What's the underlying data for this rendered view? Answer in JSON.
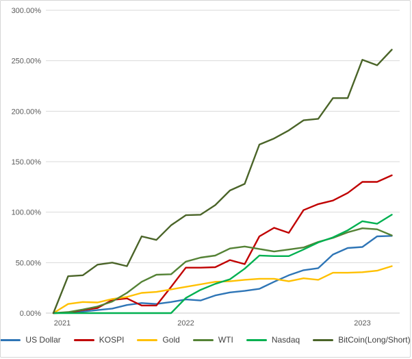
{
  "chart_data": {
    "type": "line",
    "title": "",
    "x_axis": {
      "point_count": 24,
      "tick_labels": [
        {
          "label": "2021",
          "index": 0,
          "dx": 13
        },
        {
          "label": "2022",
          "index": 9,
          "dx": 0
        },
        {
          "label": "2023",
          "index": 21,
          "dx": 0
        }
      ]
    },
    "y_axis": {
      "min": 0,
      "max": 300,
      "step": 50,
      "format": "percent",
      "tick_labels": [
        "0.00%",
        "50.00%",
        "100.00%",
        "150.00%",
        "200.00%",
        "250.00%",
        "300.00%"
      ]
    },
    "grid": "horizontal",
    "legend_position": "bottom",
    "series": [
      {
        "name": "US Dollar",
        "color": "#2E75B6",
        "values": [
          0,
          0.5,
          1.5,
          3,
          4.5,
          8,
          10,
          9,
          11,
          13.5,
          12.5,
          17.5,
          20.5,
          22,
          24,
          31,
          37.5,
          42.5,
          44.5,
          58,
          64.5,
          65.5,
          76,
          76.5
        ]
      },
      {
        "name": "KOSPI",
        "color": "#C00000",
        "values": [
          0,
          0.5,
          3,
          5,
          13,
          14.5,
          7.5,
          7.5,
          26,
          45,
          45,
          45.5,
          52.5,
          48.5,
          76,
          84.5,
          79.5,
          102,
          108,
          111.5,
          119,
          130,
          130,
          136.5
        ]
      },
      {
        "name": "Gold",
        "color": "#FFC000",
        "values": [
          0,
          9,
          11,
          10.5,
          14,
          16,
          20,
          21,
          23.5,
          26,
          28.5,
          31,
          31.5,
          33,
          34,
          34,
          31.5,
          34.5,
          33,
          40,
          40,
          40.5,
          42,
          46.5
        ]
      },
      {
        "name": "WTI",
        "color": "#548235",
        "values": [
          0,
          1,
          3.5,
          6.5,
          11.5,
          20,
          31,
          38,
          38.5,
          51,
          55,
          57,
          64,
          66,
          63.5,
          61,
          63,
          65,
          70.5,
          74.5,
          80,
          84,
          83,
          77
        ]
      },
      {
        "name": "Nasdaq",
        "color": "#00B050",
        "values": [
          0,
          0,
          0,
          0,
          0,
          0,
          0,
          0,
          0,
          15,
          23,
          29,
          33.5,
          44,
          57,
          56.5,
          56.5,
          63,
          70,
          75,
          82,
          91,
          88.5,
          97.5
        ]
      },
      {
        "name": "BitCoin(Long/Short)",
        "color": "#4A6428",
        "values": [
          0,
          36.5,
          37.5,
          48,
          50,
          46.5,
          76,
          72.5,
          87,
          97,
          97.5,
          107,
          121.5,
          128,
          167,
          173,
          181,
          191,
          192.5,
          213,
          213,
          251,
          245.5,
          261
        ]
      }
    ]
  }
}
